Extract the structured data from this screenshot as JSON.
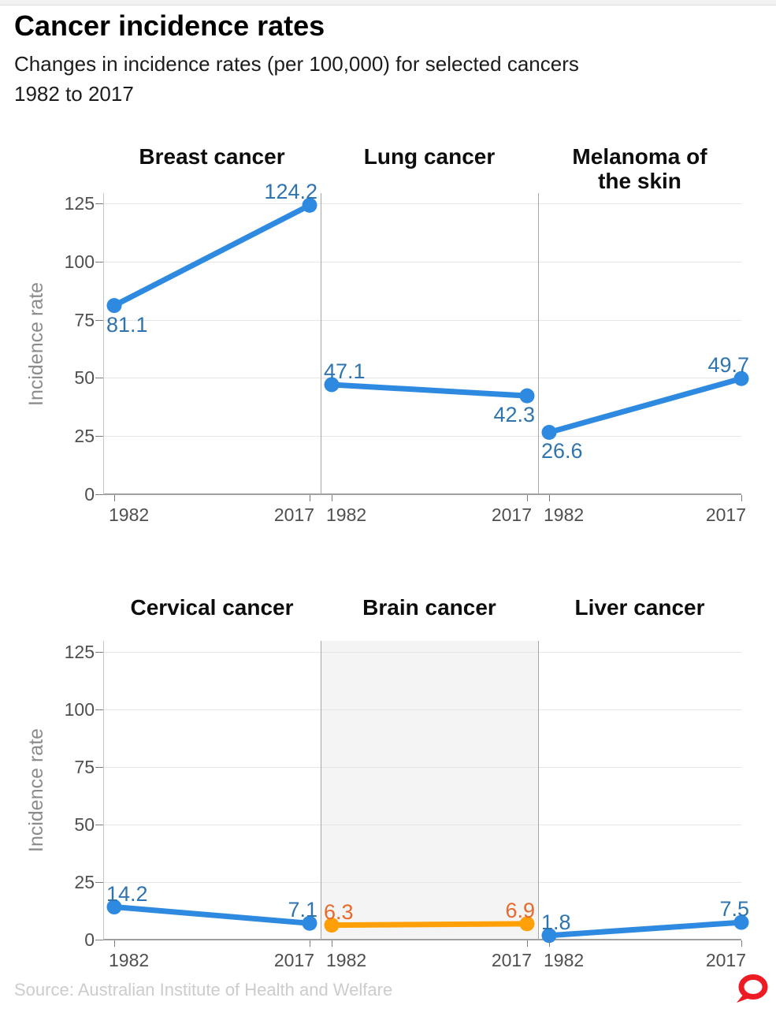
{
  "header": {
    "title": "Cancer incidence rates",
    "subtitle_line1": "Changes in incidence rates (per 100,000) for selected cancers",
    "subtitle_line2": "1982 to 2017"
  },
  "footer": {
    "source": "Source: Australian Institute of Health and Welfare",
    "logo": "the-conversation-logo",
    "logo_color": "#ed1b24"
  },
  "chart_data": {
    "type": "line",
    "title": "Cancer incidence rates",
    "subtitle": "Changes in incidence rates (per 100,000) for selected cancers 1982 to 2017",
    "layout": "small multiples, 2 rows x 3 panels, shared y axis",
    "x_categories": [
      "1982",
      "2017"
    ],
    "ylabel": "Incidence rate",
    "ylim": [
      0,
      125
    ],
    "yticks": [
      0,
      25,
      50,
      75,
      100,
      125
    ],
    "grid": "horizontal",
    "legend": "none",
    "colors": {
      "blue": "#2e8ae1",
      "blue_label": "#2f74ae",
      "orange": "#ffa008",
      "orange_label": "#e8692c",
      "highlight_bg": "#f4f4f4",
      "gridline": "#e6e6e6",
      "axis": "#a0a0a0",
      "tick_text": "#4f4f4f",
      "axis_title_text": "#8c8c8c"
    },
    "panels": [
      {
        "row": 0,
        "title": "Breast cancer",
        "title_lines": [
          "Breast cancer"
        ],
        "color": "blue",
        "highlighted": false,
        "values": [
          81.1,
          124.2
        ],
        "labels": [
          "81.1",
          "124.2"
        ],
        "label_positions": [
          "below",
          "above"
        ]
      },
      {
        "row": 0,
        "title": "Lung cancer",
        "title_lines": [
          "Lung cancer"
        ],
        "color": "blue",
        "highlighted": false,
        "values": [
          47.1,
          42.3
        ],
        "labels": [
          "47.1",
          "42.3"
        ],
        "label_positions": [
          "above",
          "below"
        ]
      },
      {
        "row": 0,
        "title": "Melanoma of the skin",
        "title_lines": [
          "Melanoma of",
          "the skin"
        ],
        "color": "blue",
        "highlighted": false,
        "values": [
          26.6,
          49.7
        ],
        "labels": [
          "26.6",
          "49.7"
        ],
        "label_positions": [
          "below",
          "above"
        ]
      },
      {
        "row": 1,
        "title": "Cervical cancer",
        "title_lines": [
          "Cervical cancer"
        ],
        "color": "blue",
        "highlighted": false,
        "values": [
          14.2,
          7.1
        ],
        "labels": [
          "14.2",
          "7.1"
        ],
        "label_positions": [
          "above",
          "above"
        ]
      },
      {
        "row": 1,
        "title": "Brain cancer",
        "title_lines": [
          "Brain cancer"
        ],
        "color": "orange",
        "highlighted": true,
        "values": [
          6.3,
          6.9
        ],
        "labels": [
          "6.3",
          "6.9"
        ],
        "label_positions": [
          "above",
          "above"
        ]
      },
      {
        "row": 1,
        "title": "Liver cancer",
        "title_lines": [
          "Liver cancer"
        ],
        "color": "blue",
        "highlighted": false,
        "values": [
          1.8,
          7.5
        ],
        "labels": [
          "1.8",
          "7.5"
        ],
        "label_positions": [
          "above",
          "above"
        ]
      }
    ]
  }
}
